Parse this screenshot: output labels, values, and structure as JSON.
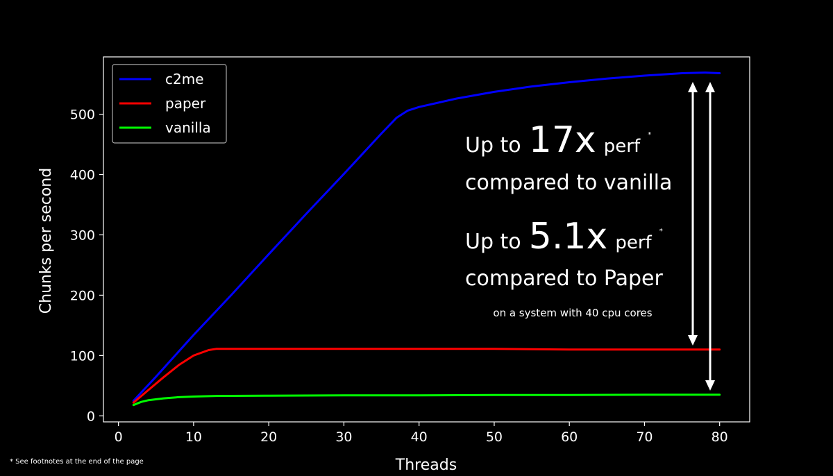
{
  "chart_data": {
    "type": "line",
    "xlabel": "Threads",
    "ylabel": "Chunks per second",
    "xlim": [
      -2,
      84
    ],
    "ylim": [
      -10,
      595
    ],
    "xticks": [
      0,
      10,
      20,
      30,
      40,
      50,
      60,
      70,
      80
    ],
    "yticks": [
      0,
      100,
      200,
      300,
      400,
      500
    ],
    "grid": false,
    "legend_position": "top-left",
    "series": [
      {
        "name": "c2me",
        "color": "#0000ff",
        "x": [
          2,
          5,
          10,
          15,
          20,
          25,
          30,
          35,
          37,
          38.5,
          40,
          45,
          50,
          55,
          60,
          65,
          70,
          75,
          78,
          80
        ],
        "y": [
          25,
          65,
          134,
          200,
          268,
          335,
          401,
          468,
          494,
          506,
          512,
          526,
          537,
          546,
          553,
          559,
          564,
          568,
          569,
          568
        ]
      },
      {
        "name": "paper",
        "color": "#ff0000",
        "x": [
          2,
          4,
          6,
          8,
          10,
          12,
          13,
          14,
          20,
          30,
          40,
          50,
          60,
          70,
          80
        ],
        "y": [
          22,
          43,
          64,
          84,
          100,
          109,
          111,
          111,
          111,
          111,
          111,
          111,
          110,
          110,
          110
        ]
      },
      {
        "name": "vanilla",
        "color": "#00ff00",
        "x": [
          2,
          3,
          4,
          6,
          8,
          10,
          13,
          20,
          30,
          40,
          50,
          60,
          70,
          80
        ],
        "y": [
          18,
          23,
          26,
          29,
          31,
          32,
          33,
          33.5,
          34,
          34,
          34.5,
          34.5,
          35,
          35
        ]
      }
    ],
    "annotations": {
      "line1_prefix": "Up to",
      "line1_value": "17x",
      "line1_suffix": "perf",
      "line1_star": "*",
      "line2": "compared to vanilla",
      "line3_prefix": "Up to",
      "line3_value": "5.1x",
      "line3_suffix": "perf",
      "line3_star": "*",
      "line4": "compared to Paper",
      "note": "on a system with 40 cpu cores"
    },
    "footnote": "* See footnotes at the end of the page"
  }
}
